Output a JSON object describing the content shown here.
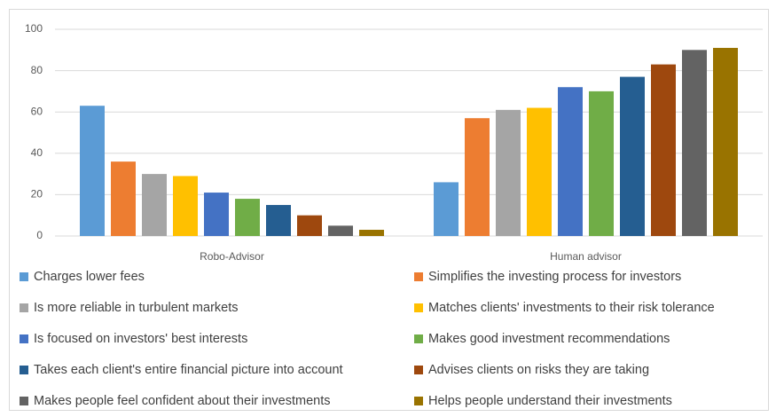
{
  "chart_data": {
    "type": "bar",
    "categories": [
      "Robo-Advisor",
      "Human advisor"
    ],
    "series": [
      {
        "name": "Charges lower fees",
        "color": "#5B9BD5",
        "values": [
          63,
          26
        ]
      },
      {
        "name": "Simplifies the investing process for investors",
        "color": "#ED7D31",
        "values": [
          36,
          57
        ]
      },
      {
        "name": "Is more reliable in turbulent markets",
        "color": "#A5A5A5",
        "values": [
          30,
          61
        ]
      },
      {
        "name": "Matches clients' investments to their risk tolerance",
        "color": "#FFC000",
        "values": [
          29,
          62
        ]
      },
      {
        "name": "Is focused on investors' best interests",
        "color": "#4472C4",
        "values": [
          21,
          72
        ]
      },
      {
        "name": "Makes good investment recommendations",
        "color": "#70AD47",
        "values": [
          18,
          70
        ]
      },
      {
        "name": "Takes each client's entire financial picture into account",
        "color": "#255E91",
        "values": [
          15,
          77
        ]
      },
      {
        "name": "Advises clients on risks they are taking",
        "color": "#9E480E",
        "values": [
          10,
          83
        ]
      },
      {
        "name": "Makes people feel confident about their investments",
        "color": "#636363",
        "values": [
          5,
          90
        ]
      },
      {
        "name": "Helps people understand their investments",
        "color": "#997300",
        "values": [
          3,
          91
        ]
      }
    ],
    "ylim": [
      0,
      100
    ],
    "yticks": [
      0,
      20,
      40,
      60,
      80,
      100
    ],
    "grid": true,
    "legend": "bottom"
  }
}
